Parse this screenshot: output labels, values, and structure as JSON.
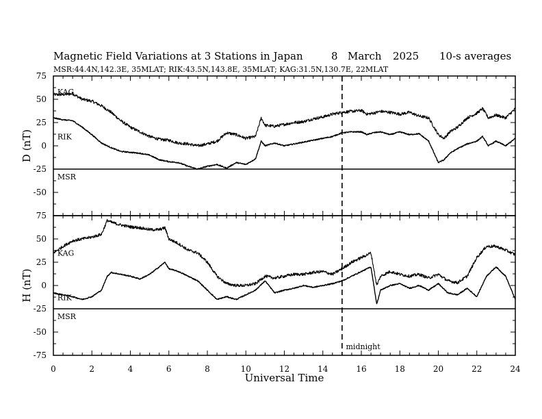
{
  "header": {
    "title": "Magnetic Field Variations at 3 Stations in Japan",
    "date_day": "8",
    "date_month": "March",
    "date_year": "2025",
    "averaging": "10-s averages",
    "stations_line": "MSR:44.4N,142.3E, 35MLAT;  RIK:43.5N,143.8E, 35MLAT;  KAG:31.5N,130.7E, 22MLAT"
  },
  "chart_data": [
    {
      "type": "line",
      "panel": "D",
      "ylabel": "D (nT)",
      "xlabel": "",
      "xlim": [
        0,
        24
      ],
      "ylim": [
        -75,
        75
      ],
      "yticks": [
        75,
        50,
        25,
        0,
        -25,
        -50,
        -75
      ],
      "ytick_labels": [
        "75",
        "50",
        "25",
        "0",
        "-25",
        "-50",
        "-75"
      ],
      "station_labels": [
        {
          "text": "KAG",
          "x": 0.1,
          "y": 58
        },
        {
          "text": "RIK",
          "x": 0.1,
          "y": 10
        },
        {
          "text": "MSR",
          "x": 0.1,
          "y": -33
        }
      ],
      "hlines": [
        -25
      ],
      "series": [
        {
          "name": "KAG",
          "noise": 1.6,
          "x": [
            0,
            0.5,
            1,
            1.5,
            2,
            2.5,
            3,
            3.5,
            4,
            4.5,
            5,
            5.5,
            6,
            6.5,
            7,
            7.5,
            8,
            8.5,
            9,
            9.5,
            10,
            10.5,
            10.8,
            11,
            11.5,
            12,
            12.5,
            13,
            13.5,
            14,
            14.5,
            15,
            15.5,
            16,
            16.3,
            16.6,
            17,
            17.5,
            18,
            18.5,
            19,
            19.5,
            20,
            20.3,
            20.6,
            21,
            21.5,
            22,
            22.3,
            22.6,
            23,
            23.5,
            24
          ],
          "y": [
            55,
            55,
            56,
            50,
            48,
            43,
            36,
            27,
            20,
            15,
            10,
            7,
            6,
            3,
            2,
            0,
            2,
            5,
            14,
            12,
            8,
            10,
            30,
            22,
            21,
            23,
            25,
            26,
            29,
            31,
            34,
            36,
            37,
            38,
            34,
            35,
            37,
            36,
            34,
            36,
            32,
            30,
            12,
            8,
            15,
            20,
            30,
            35,
            40,
            30,
            33,
            30,
            40
          ]
        },
        {
          "name": "RIK",
          "noise": 0.6,
          "x": [
            0,
            0.5,
            1,
            1.5,
            2,
            2.5,
            3,
            3.5,
            4,
            4.5,
            5,
            5.5,
            6,
            6.5,
            7,
            7.5,
            8,
            8.5,
            9,
            9.5,
            10,
            10.5,
            10.8,
            11,
            11.5,
            12,
            12.5,
            13,
            13.5,
            14,
            14.5,
            15,
            15.5,
            16,
            16.3,
            16.6,
            17,
            17.5,
            18,
            18.5,
            19,
            19.5,
            20,
            20.3,
            20.6,
            21,
            21.5,
            22,
            22.3,
            22.6,
            23,
            23.5,
            24
          ],
          "y": [
            30,
            28,
            27,
            20,
            12,
            3,
            -2,
            -6,
            -7,
            -8,
            -10,
            -15,
            -17,
            -18,
            -22,
            -25,
            -22,
            -20,
            -24,
            -18,
            -20,
            -14,
            5,
            0,
            3,
            0,
            2,
            4,
            6,
            8,
            10,
            14,
            15,
            15,
            12,
            14,
            15,
            12,
            15,
            12,
            13,
            5,
            -18,
            -15,
            -8,
            -3,
            2,
            5,
            10,
            0,
            5,
            0,
            8
          ]
        }
      ]
    },
    {
      "type": "line",
      "panel": "H",
      "ylabel": "H (nT)",
      "xlabel": "Universal Time",
      "xlim": [
        0,
        24
      ],
      "ylim": [
        -75,
        75
      ],
      "xticks": [
        0,
        2,
        4,
        6,
        8,
        10,
        12,
        14,
        16,
        18,
        20,
        22,
        24
      ],
      "xtick_labels": [
        "0",
        "2",
        "4",
        "6",
        "8",
        "10",
        "12",
        "14",
        "16",
        "18",
        "20",
        "22",
        "24"
      ],
      "yticks": [
        75,
        50,
        25,
        0,
        -25,
        -50,
        -75
      ],
      "ytick_labels": [
        "75",
        "50",
        "25",
        "0",
        "-25",
        "-50",
        "-75"
      ],
      "station_labels": [
        {
          "text": "KAG",
          "x": 0.1,
          "y": 35
        },
        {
          "text": "RIK",
          "x": 0.1,
          "y": -13
        },
        {
          "text": "MSR",
          "x": 0.1,
          "y": -33
        }
      ],
      "hlines": [
        -25
      ],
      "annotations": [
        {
          "text": "midnight",
          "x": 15.2,
          "y": -70
        }
      ],
      "series": [
        {
          "name": "KAG",
          "noise": 1.6,
          "x": [
            0,
            0.5,
            1,
            1.5,
            2,
            2.5,
            2.8,
            3,
            3.5,
            4,
            4.5,
            5,
            5.5,
            5.8,
            6,
            6.5,
            7,
            7.5,
            8,
            8.5,
            9,
            9.5,
            10,
            10.5,
            11,
            11.5,
            12,
            12.5,
            13,
            13.5,
            14,
            14.5,
            15,
            15.5,
            16,
            16.5,
            16.8,
            17,
            17.5,
            18,
            18.5,
            19,
            19.5,
            20,
            20.5,
            21,
            21.5,
            22,
            22.5,
            23,
            23.5,
            24
          ],
          "y": [
            35,
            42,
            48,
            50,
            52,
            55,
            70,
            68,
            65,
            63,
            62,
            60,
            60,
            62,
            50,
            45,
            38,
            35,
            25,
            10,
            2,
            0,
            0,
            2,
            10,
            8,
            10,
            12,
            12,
            14,
            15,
            12,
            18,
            25,
            30,
            35,
            0,
            10,
            15,
            12,
            10,
            12,
            8,
            12,
            5,
            3,
            10,
            30,
            42,
            42,
            38,
            33
          ]
        },
        {
          "name": "RIK",
          "noise": 0.6,
          "x": [
            0,
            0.5,
            1,
            1.5,
            2,
            2.5,
            2.8,
            3,
            3.5,
            4,
            4.5,
            5,
            5.5,
            5.8,
            6,
            6.5,
            7,
            7.5,
            8,
            8.5,
            9,
            9.5,
            10,
            10.5,
            11,
            11.5,
            12,
            12.5,
            13,
            13.5,
            14,
            14.5,
            15,
            15.5,
            16,
            16.5,
            16.8,
            17,
            17.5,
            18,
            18.5,
            19,
            19.5,
            20,
            20.5,
            21,
            21.5,
            22,
            22.5,
            23,
            23.5,
            24
          ],
          "y": [
            -8,
            -10,
            -12,
            -15,
            -12,
            -5,
            10,
            14,
            12,
            10,
            7,
            12,
            20,
            25,
            18,
            15,
            10,
            5,
            -5,
            -15,
            -12,
            -15,
            -10,
            -5,
            5,
            -8,
            -5,
            -3,
            0,
            -2,
            0,
            2,
            5,
            10,
            15,
            20,
            -20,
            -5,
            0,
            2,
            -3,
            0,
            -5,
            2,
            -8,
            -10,
            -3,
            -12,
            10,
            20,
            10,
            -15
          ]
        }
      ]
    }
  ],
  "midnight_line": {
    "x": 15,
    "label": "midnight"
  }
}
